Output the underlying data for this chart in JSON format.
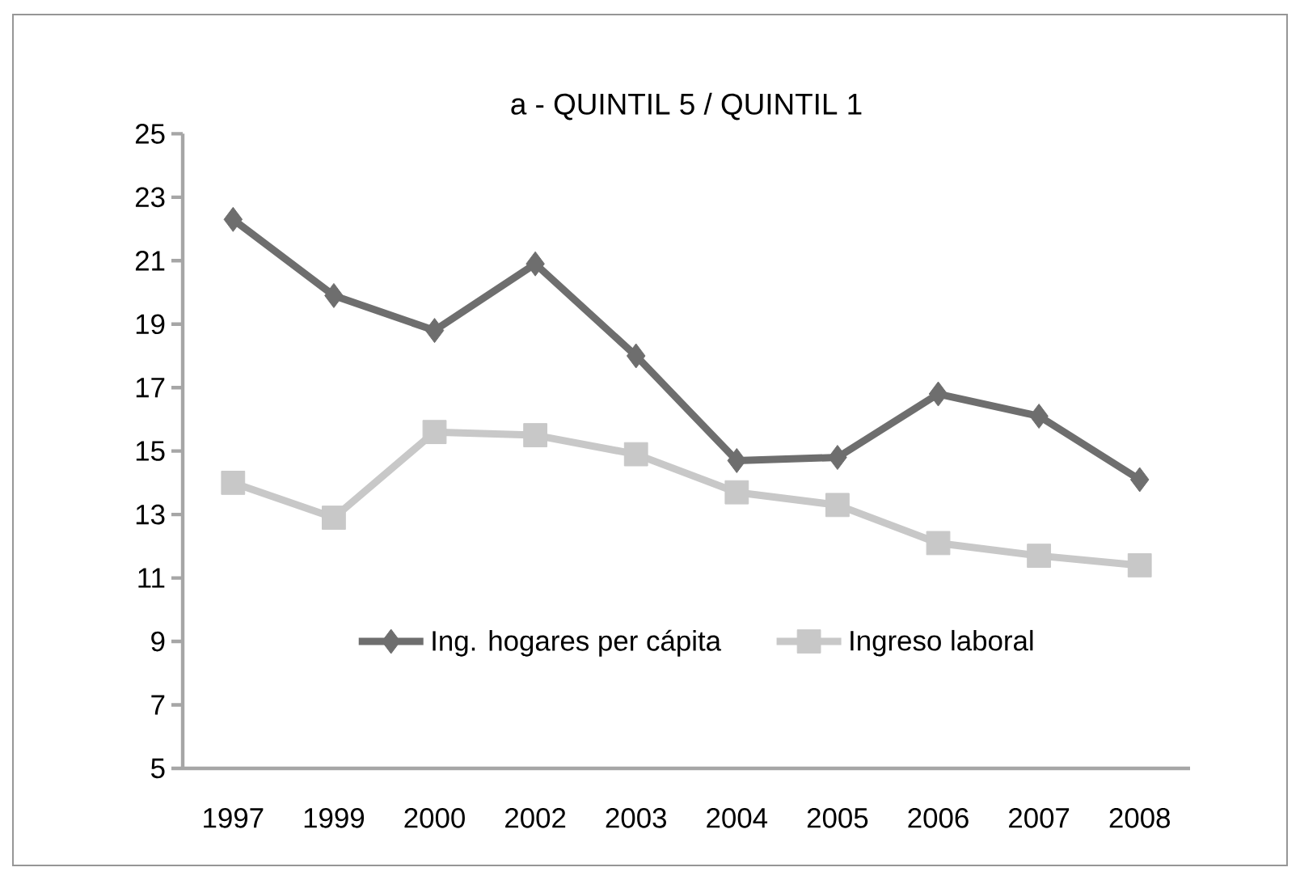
{
  "chart_data": {
    "type": "line",
    "title": "a -  QUINTIL 5 / QUINTIL 1",
    "categories": [
      "1997",
      "1999",
      "2000",
      "2002",
      "2003",
      "2004",
      "2005",
      "2006",
      "2007",
      "2008"
    ],
    "series": [
      {
        "name": "Ing. hogares per cápita",
        "color": "#6e6e6e",
        "marker": "diamond",
        "values": [
          22.3,
          19.9,
          18.8,
          20.9,
          18.0,
          14.7,
          14.8,
          16.8,
          16.1,
          14.1
        ]
      },
      {
        "name": "Ingreso laboral",
        "color": "#c8c8c8",
        "marker": "square",
        "values": [
          14.0,
          12.9,
          15.6,
          15.5,
          14.9,
          13.7,
          13.3,
          12.1,
          11.7,
          11.4
        ]
      }
    ],
    "ylim": [
      5,
      25
    ],
    "yticks": [
      5,
      7,
      9,
      11,
      13,
      15,
      17,
      19,
      21,
      23,
      25
    ],
    "legend": "bottom",
    "line_style": "solid"
  }
}
